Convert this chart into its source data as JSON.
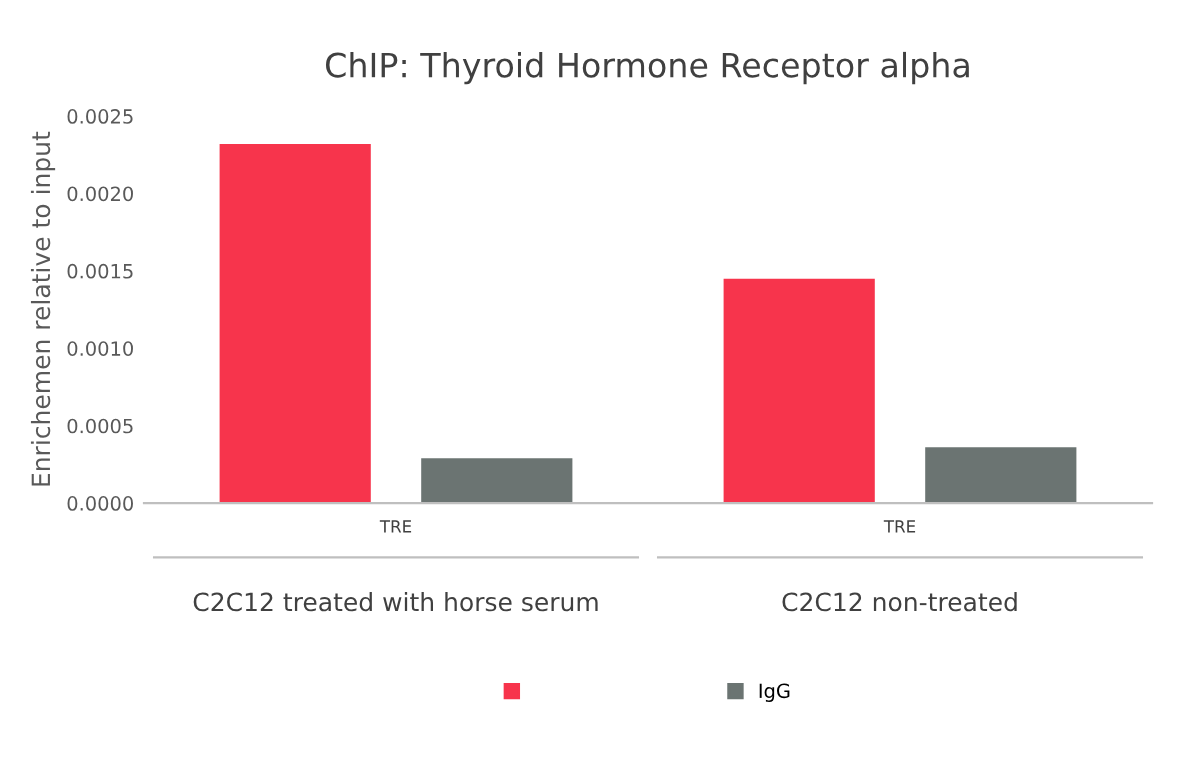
{
  "chart_data": {
    "type": "bar",
    "title": "ChIP: Thyroid Hormone Receptor alpha",
    "ylabel": "Enrichemen relative to input",
    "categories": [
      "TRE",
      "TRE"
    ],
    "series": [
      {
        "color": "#f7344c",
        "values": [
          0.00232,
          0.00145
        ]
      },
      {
        "name": "IgG",
        "color": "#6b7472",
        "values": [
          0.00029,
          0.00036
        ]
      }
    ],
    "annotations": [
      "C2C12 treated with horse serum",
      "C2C12 non-treated"
    ],
    "ylim": [
      0,
      0.0025
    ],
    "yticks": [
      {
        "value": 0,
        "label": "0.0000"
      },
      {
        "value": 0.0005,
        "label": "0.0005"
      },
      {
        "value": 0.001,
        "label": "0.0010"
      },
      {
        "value": 0.0015,
        "label": "0.0015"
      },
      {
        "value": 0.002,
        "label": "0.0020"
      },
      {
        "value": 0.0025,
        "label": "0.0025"
      }
    ],
    "grid": false,
    "legend": "bottom"
  }
}
